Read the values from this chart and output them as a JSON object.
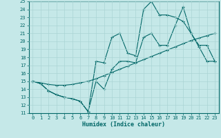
{
  "xlabel": "Humidex (Indice chaleur)",
  "bg_color": "#c5e8e8",
  "line_color": "#006666",
  "grid_color": "#aad4d4",
  "ylim": [
    11,
    25
  ],
  "xlim": [
    -0.5,
    23.5
  ],
  "yticks": [
    11,
    12,
    13,
    14,
    15,
    16,
    17,
    18,
    19,
    20,
    21,
    22,
    23,
    24,
    25
  ],
  "xticks": [
    0,
    1,
    2,
    3,
    4,
    5,
    6,
    7,
    8,
    9,
    10,
    11,
    12,
    13,
    14,
    15,
    16,
    17,
    18,
    19,
    20,
    21,
    22,
    23
  ],
  "line1_x": [
    0,
    1,
    2,
    3,
    4,
    5,
    6,
    7,
    8,
    9,
    10,
    11,
    12,
    13,
    14,
    15,
    16,
    17,
    18,
    19,
    20,
    21,
    22,
    23
  ],
  "line1_y": [
    15.0,
    14.8,
    14.6,
    14.5,
    14.5,
    14.6,
    14.8,
    15.0,
    15.3,
    15.7,
    16.1,
    16.5,
    16.9,
    17.3,
    17.7,
    18.1,
    18.5,
    18.9,
    19.3,
    19.7,
    20.1,
    20.4,
    20.7,
    21.0
  ],
  "line2_x": [
    0,
    1,
    2,
    3,
    4,
    5,
    6,
    7,
    8,
    9,
    10,
    11,
    12,
    13,
    14,
    15,
    16,
    17,
    18,
    19,
    20,
    21,
    22,
    23
  ],
  "line2_y": [
    15.0,
    14.7,
    13.8,
    13.3,
    13.0,
    12.8,
    12.5,
    11.2,
    17.5,
    17.3,
    20.5,
    21.0,
    18.5,
    18.2,
    24.0,
    25.0,
    23.3,
    23.3,
    23.0,
    22.5,
    21.0,
    19.3,
    17.5,
    17.5
  ],
  "line3_x": [
    0,
    1,
    2,
    3,
    4,
    5,
    6,
    7,
    8,
    9,
    10,
    11,
    12,
    13,
    14,
    15,
    16,
    17,
    18,
    19,
    20,
    21,
    22,
    23
  ],
  "line3_y": [
    15.0,
    14.7,
    13.8,
    13.3,
    13.0,
    12.8,
    12.5,
    11.2,
    15.0,
    14.0,
    16.5,
    17.5,
    17.5,
    17.3,
    20.5,
    21.0,
    19.5,
    19.5,
    22.0,
    24.3,
    21.0,
    19.5,
    19.5,
    17.5
  ]
}
